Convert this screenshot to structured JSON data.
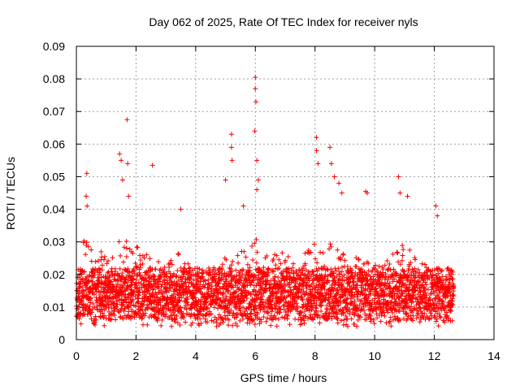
{
  "chart_data": {
    "type": "scatter",
    "title": "Day 062 of 2025, Rate Of TEC Index for receiver nyls",
    "xlabel": "GPS time / hours",
    "ylabel": "ROTI / TECUs",
    "xlim": [
      0,
      14
    ],
    "ylim": [
      0,
      0.09
    ],
    "x_ticks": [
      0,
      2,
      4,
      6,
      8,
      10,
      12,
      14
    ],
    "y_ticks": [
      0,
      0.01,
      0.02,
      0.03,
      0.04,
      0.05,
      0.06,
      0.07,
      0.08,
      0.09
    ],
    "x_tick_labels": [
      "0",
      "2",
      "4",
      "6",
      "8",
      "10",
      "12",
      "14"
    ],
    "y_tick_labels": [
      "0",
      "0.01",
      "0.02",
      "0.03",
      "0.04",
      "0.05",
      "0.06",
      "0.07",
      "0.08",
      "0.09"
    ],
    "grid": true,
    "marker": "+",
    "marker_color": "#ff0000",
    "series": [
      {
        "name": "ROTI",
        "data_extent_hours": [
          0,
          12.65
        ],
        "base_range": [
          0.006,
          0.022
        ],
        "envelope": [
          [
            0.0,
            0.022
          ],
          [
            0.3,
            0.032
          ],
          [
            0.6,
            0.027
          ],
          [
            1.0,
            0.027
          ],
          [
            1.4,
            0.03
          ],
          [
            1.7,
            0.031
          ],
          [
            2.0,
            0.029
          ],
          [
            2.5,
            0.026
          ],
          [
            3.0,
            0.023
          ],
          [
            3.5,
            0.028
          ],
          [
            4.0,
            0.019
          ],
          [
            4.5,
            0.023
          ],
          [
            5.0,
            0.027
          ],
          [
            5.5,
            0.028
          ],
          [
            6.0,
            0.031
          ],
          [
            6.5,
            0.028
          ],
          [
            7.0,
            0.027
          ],
          [
            7.5,
            0.025
          ],
          [
            8.0,
            0.03
          ],
          [
            8.5,
            0.03
          ],
          [
            9.0,
            0.026
          ],
          [
            9.5,
            0.025
          ],
          [
            10.0,
            0.026
          ],
          [
            10.5,
            0.027
          ],
          [
            11.0,
            0.03
          ],
          [
            11.5,
            0.024
          ],
          [
            12.0,
            0.024
          ],
          [
            12.65,
            0.02
          ]
        ],
        "spikes": [
          [
            0.35,
            0.051
          ],
          [
            0.33,
            0.044
          ],
          [
            0.36,
            0.041
          ],
          [
            1.45,
            0.057
          ],
          [
            1.5,
            0.055
          ],
          [
            1.55,
            0.049
          ],
          [
            1.7,
            0.0675
          ],
          [
            1.72,
            0.054
          ],
          [
            1.75,
            0.044
          ],
          [
            2.55,
            0.0535
          ],
          [
            3.5,
            0.04
          ],
          [
            5.0,
            0.049
          ],
          [
            5.2,
            0.063
          ],
          [
            5.2,
            0.059
          ],
          [
            5.22,
            0.055
          ],
          [
            5.6,
            0.041
          ],
          [
            6.0,
            0.0805
          ],
          [
            6.0,
            0.077
          ],
          [
            6.02,
            0.073
          ],
          [
            5.98,
            0.064
          ],
          [
            6.05,
            0.055
          ],
          [
            6.1,
            0.049
          ],
          [
            6.05,
            0.046
          ],
          [
            8.05,
            0.062
          ],
          [
            8.05,
            0.058
          ],
          [
            8.1,
            0.054
          ],
          [
            8.5,
            0.059
          ],
          [
            8.55,
            0.054
          ],
          [
            8.65,
            0.05
          ],
          [
            8.8,
            0.048
          ],
          [
            8.9,
            0.045
          ],
          [
            9.7,
            0.0455
          ],
          [
            9.75,
            0.045
          ],
          [
            10.8,
            0.05
          ],
          [
            10.85,
            0.045
          ],
          [
            11.1,
            0.044
          ],
          [
            12.05,
            0.041
          ],
          [
            12.1,
            0.038
          ]
        ]
      }
    ]
  }
}
